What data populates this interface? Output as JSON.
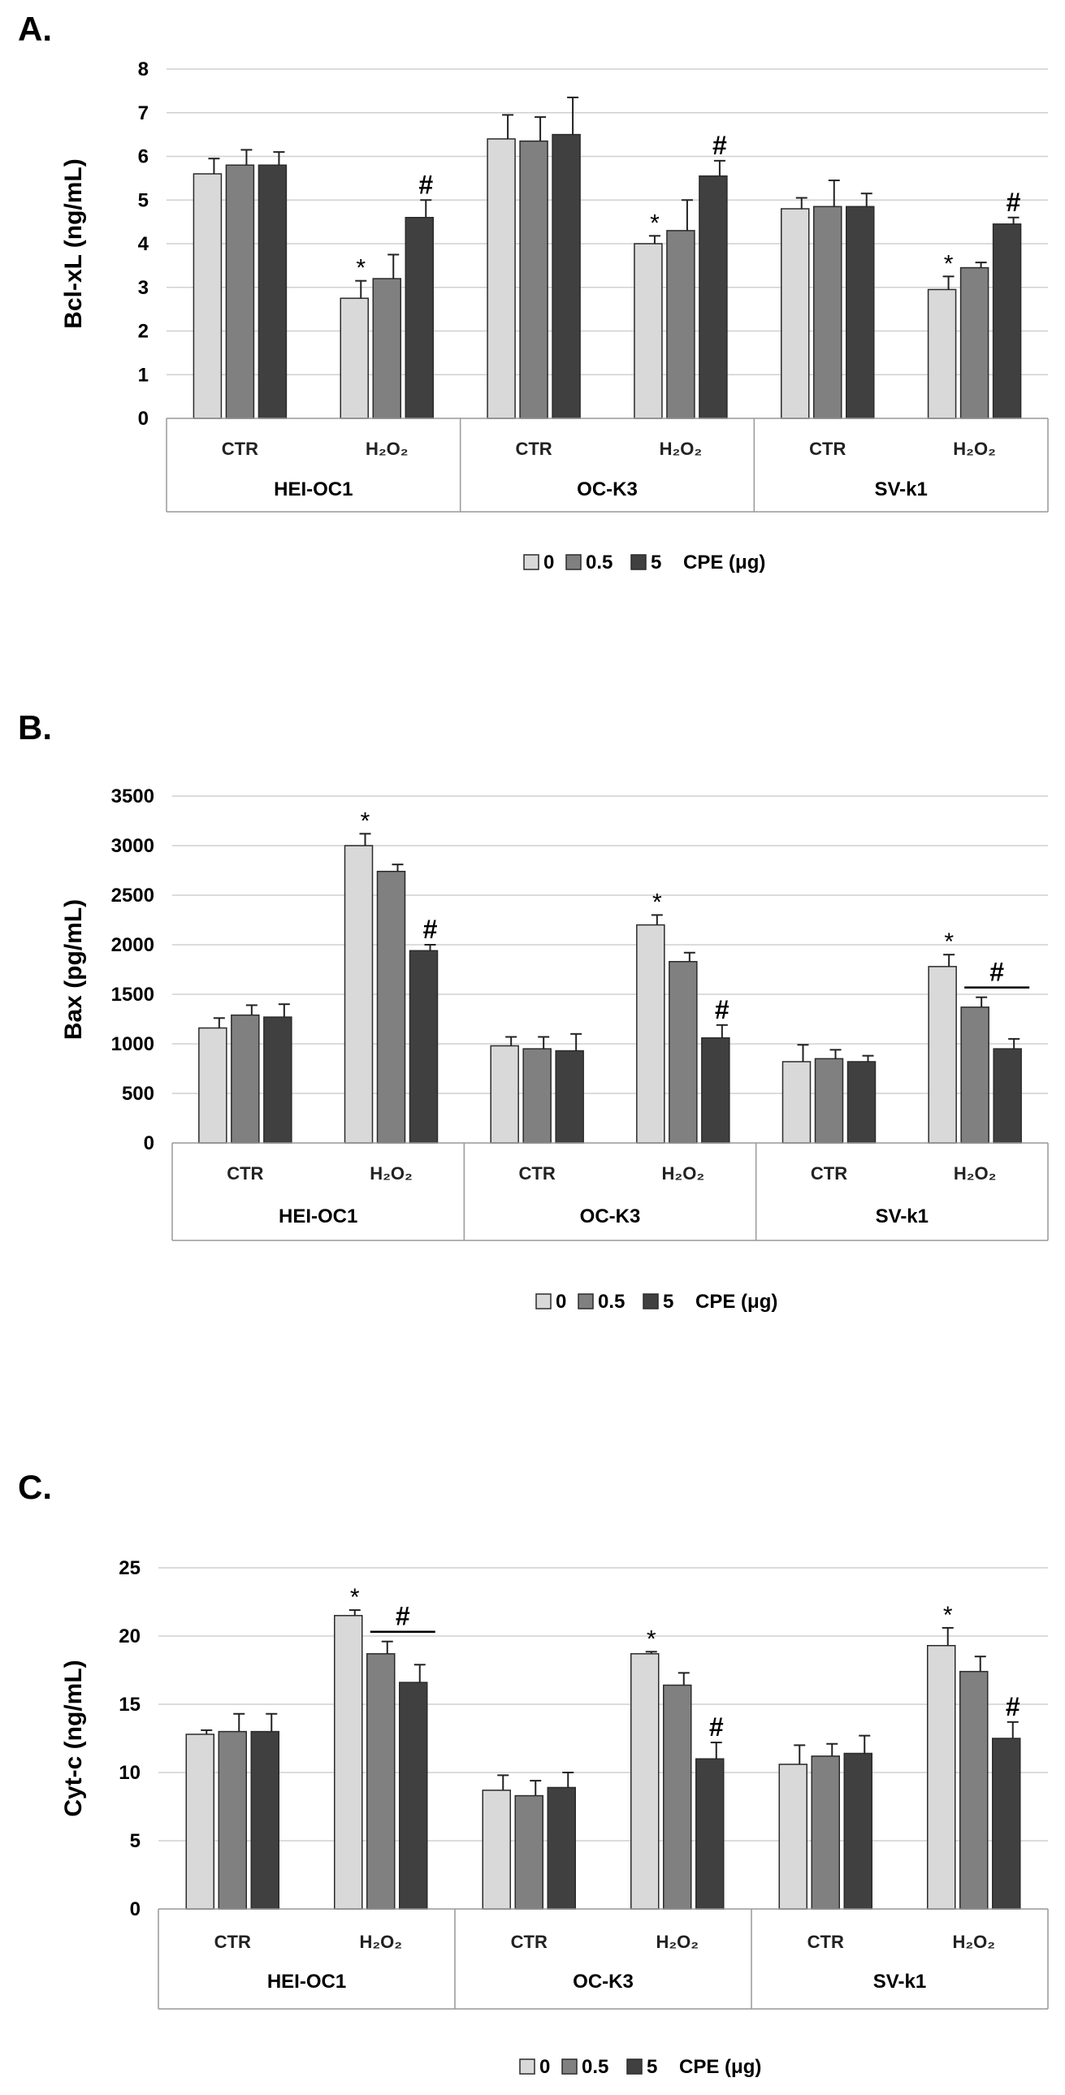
{
  "colors": {
    "series": [
      "#d9d9d9",
      "#808080",
      "#404040"
    ],
    "bar_stroke": "#2b2b2b",
    "axis": "#999999",
    "grid": "#d0d0d0"
  },
  "chart_data": [
    {
      "type": "bar",
      "panel_label": "A.",
      "ylabel": "Bcl-xL (ng/mL)",
      "ylim": [
        0,
        8
      ],
      "yticks": [
        0,
        1,
        2,
        3,
        4,
        5,
        6,
        7,
        8
      ],
      "grid": true,
      "groups": [
        "HEI-OC1",
        "OC-K3",
        "SV-k1"
      ],
      "conditions": [
        "CTR",
        "H₂O₂"
      ],
      "categories": [
        "HEI-OC1 CTR",
        "HEI-OC1 H₂O₂",
        "OC-K3 CTR",
        "OC-K3 H₂O₂",
        "SV-k1 CTR",
        "SV-k1 H₂O₂"
      ],
      "series": [
        {
          "name": "0",
          "values": [
            5.6,
            2.75,
            6.4,
            4.0,
            4.8,
            2.95
          ],
          "errors": [
            0.35,
            0.4,
            0.55,
            0.18,
            0.25,
            0.3
          ]
        },
        {
          "name": "0.5",
          "values": [
            5.8,
            3.2,
            6.35,
            4.3,
            4.85,
            3.45
          ],
          "errors": [
            0.35,
            0.55,
            0.55,
            0.7,
            0.6,
            0.12
          ]
        },
        {
          "name": "5",
          "values": [
            5.8,
            4.6,
            6.5,
            5.55,
            4.85,
            4.45
          ],
          "errors": [
            0.3,
            0.4,
            0.85,
            0.35,
            0.3,
            0.15
          ]
        }
      ],
      "markers": [
        {
          "category": 1,
          "series": 0,
          "symbol": "*"
        },
        {
          "category": 1,
          "series": 2,
          "symbol": "#"
        },
        {
          "category": 3,
          "series": 0,
          "symbol": "*"
        },
        {
          "category": 3,
          "series": 2,
          "symbol": "#"
        },
        {
          "category": 5,
          "series": 0,
          "symbol": "*"
        },
        {
          "category": 5,
          "series": 2,
          "symbol": "#"
        }
      ],
      "legend": {
        "entries": [
          "0",
          "0.5",
          "5"
        ],
        "unit_label": "CPE (μg)",
        "placement": "bottom"
      }
    },
    {
      "type": "bar",
      "panel_label": "B.",
      "ylabel": "Bax (pg/mL)",
      "ylim": [
        0,
        3500
      ],
      "yticks": [
        0,
        500,
        1000,
        1500,
        2000,
        2500,
        3000,
        3500
      ],
      "grid": true,
      "groups": [
        "HEI-OC1",
        "OC-K3",
        "SV-k1"
      ],
      "conditions": [
        "CTR",
        "H₂O₂"
      ],
      "categories": [
        "HEI-OC1 CTR",
        "HEI-OC1 H₂O₂",
        "OC-K3 CTR",
        "OC-K3 H₂O₂",
        "SV-k1 CTR",
        "SV-k1 H₂O₂"
      ],
      "series": [
        {
          "name": "0",
          "values": [
            1160,
            3000,
            980,
            2200,
            820,
            1780
          ],
          "errors": [
            100,
            120,
            90,
            100,
            170,
            120
          ]
        },
        {
          "name": "0.5",
          "values": [
            1290,
            2740,
            950,
            1830,
            850,
            1370
          ],
          "errors": [
            100,
            70,
            120,
            90,
            90,
            100
          ]
        },
        {
          "name": "5",
          "values": [
            1270,
            1940,
            930,
            1060,
            820,
            950
          ],
          "errors": [
            130,
            60,
            170,
            130,
            60,
            100
          ]
        }
      ],
      "markers": [
        {
          "category": 1,
          "series": 0,
          "symbol": "*"
        },
        {
          "category": 1,
          "series": 2,
          "symbol": "#"
        },
        {
          "category": 3,
          "series": 0,
          "symbol": "*"
        },
        {
          "category": 3,
          "series": 2,
          "symbol": "#"
        },
        {
          "category": 5,
          "series": 0,
          "symbol": "*"
        },
        {
          "category": 5,
          "series": [
            1,
            2
          ],
          "symbol": "#",
          "bracket": true
        }
      ],
      "legend": {
        "entries": [
          "0",
          "0.5",
          "5"
        ],
        "unit_label": "CPE (μg)",
        "placement": "bottom"
      }
    },
    {
      "type": "bar",
      "panel_label": "C.",
      "ylabel": "Cyt-c (ng/mL)",
      "ylim": [
        0,
        25
      ],
      "yticks": [
        0,
        5,
        10,
        15,
        20,
        25
      ],
      "grid": true,
      "groups": [
        "HEI-OC1",
        "OC-K3",
        "SV-k1"
      ],
      "conditions": [
        "CTR",
        "H₂O₂"
      ],
      "categories": [
        "HEI-OC1 CTR",
        "HEI-OC1 H₂O₂",
        "OC-K3 CTR",
        "OC-K3 H₂O₂",
        "SV-k1 CTR",
        "SV-k1 H₂O₂"
      ],
      "series": [
        {
          "name": "0",
          "values": [
            12.8,
            21.5,
            8.7,
            18.7,
            10.6,
            19.3
          ],
          "errors": [
            0.3,
            0.4,
            1.1,
            0.15,
            1.4,
            1.3
          ]
        },
        {
          "name": "0.5",
          "values": [
            13.0,
            18.7,
            8.3,
            16.4,
            11.2,
            17.4
          ],
          "errors": [
            1.3,
            0.9,
            1.1,
            0.9,
            0.9,
            1.1
          ]
        },
        {
          "name": "5",
          "values": [
            13.0,
            16.6,
            8.9,
            11.0,
            11.4,
            12.5
          ],
          "errors": [
            1.3,
            1.3,
            1.1,
            1.2,
            1.3,
            1.2
          ]
        }
      ],
      "markers": [
        {
          "category": 1,
          "series": 0,
          "symbol": "*"
        },
        {
          "category": 1,
          "series": [
            1,
            2
          ],
          "symbol": "#",
          "bracket": true
        },
        {
          "category": 3,
          "series": 0,
          "symbol": "*"
        },
        {
          "category": 3,
          "series": 2,
          "symbol": "#"
        },
        {
          "category": 5,
          "series": 0,
          "symbol": "*"
        },
        {
          "category": 5,
          "series": 2,
          "symbol": "#"
        }
      ],
      "legend": {
        "entries": [
          "0",
          "0.5",
          "5"
        ],
        "unit_label": "CPE (μg)",
        "placement": "bottom"
      }
    }
  ]
}
